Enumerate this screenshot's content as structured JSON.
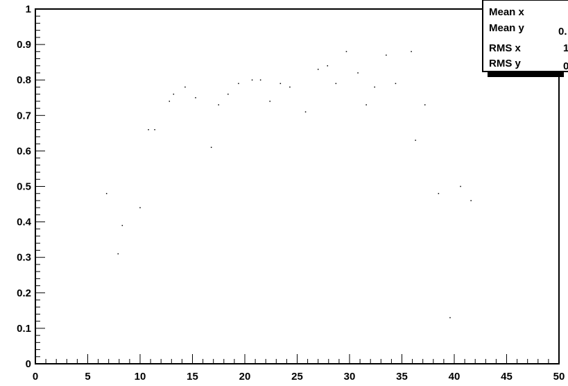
{
  "chart_data": {
    "type": "scatter",
    "title": "",
    "xlabel": "",
    "ylabel": "",
    "xlim": [
      0,
      50
    ],
    "ylim": [
      0,
      1
    ],
    "grid": false,
    "x_ticks": [
      "0",
      "5",
      "10",
      "15",
      "20",
      "25",
      "30",
      "35",
      "40",
      "45",
      "50"
    ],
    "y_ticks": [
      "0",
      "0.1",
      "0.2",
      "0.3",
      "0.4",
      "0.5",
      "0.6",
      "0.7",
      "0.8",
      "0.9",
      "1"
    ],
    "x": [
      6.8,
      7.9,
      8.3,
      10.0,
      10.8,
      11.4,
      12.8,
      13.2,
      14.3,
      15.3,
      16.8,
      17.5,
      18.4,
      19.4,
      20.7,
      21.5,
      22.4,
      23.4,
      24.3,
      25.8,
      27.0,
      27.9,
      28.7,
      29.7,
      30.8,
      31.6,
      32.4,
      33.5,
      34.4,
      35.9,
      36.3,
      37.2,
      38.5,
      39.6,
      40.6,
      41.6
    ],
    "y": [
      0.48,
      0.31,
      0.39,
      0.44,
      0.66,
      0.66,
      0.74,
      0.76,
      0.78,
      0.75,
      0.61,
      0.73,
      0.76,
      0.79,
      0.8,
      0.8,
      0.74,
      0.79,
      0.78,
      0.71,
      0.83,
      0.84,
      0.79,
      0.88,
      0.82,
      0.73,
      0.78,
      0.87,
      0.79,
      0.88,
      0.63,
      0.73,
      0.48,
      0.13,
      0.5,
      0.46
    ]
  },
  "stats_box": {
    "rows": [
      {
        "label": "Mean x",
        "value": ""
      },
      {
        "label": "Mean y",
        "value": "0."
      },
      {
        "label": "RMS x",
        "value": "1"
      },
      {
        "label": "RMS y",
        "value": "0"
      }
    ]
  }
}
